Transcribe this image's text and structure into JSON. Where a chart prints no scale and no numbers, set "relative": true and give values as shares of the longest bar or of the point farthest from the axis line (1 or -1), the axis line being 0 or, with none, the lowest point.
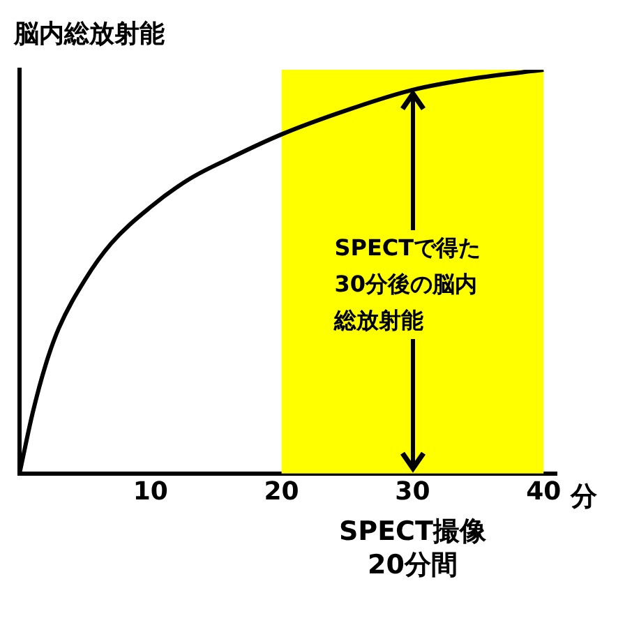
{
  "chart_data": {
    "type": "line",
    "ylabel": "脳内総放射能",
    "xlabel": "分",
    "relative": true,
    "x": [
      0,
      1,
      2,
      3,
      5,
      7,
      10,
      13,
      16,
      20,
      25,
      30,
      35,
      40
    ],
    "series": [
      {
        "color": "#000000",
        "values": [
          0,
          0.15,
          0.27,
          0.36,
          0.48,
          0.57,
          0.66,
          0.73,
          0.78,
          0.84,
          0.9,
          0.95,
          0.98,
          1
        ]
      }
    ],
    "xlim": [
      0,
      41
    ],
    "xticks": [
      10,
      20,
      30,
      40
    ],
    "bands": [
      {
        "axis": "x",
        "from": 20,
        "to": 40,
        "label": "SPECT撮像 20分間",
        "color": "#ffff00"
      }
    ],
    "annotations": [
      "SPECTで得た30分後の脳内総放射能"
    ],
    "grid": false,
    "legend": false,
    "marker": "none",
    "line_style": "solid"
  }
}
